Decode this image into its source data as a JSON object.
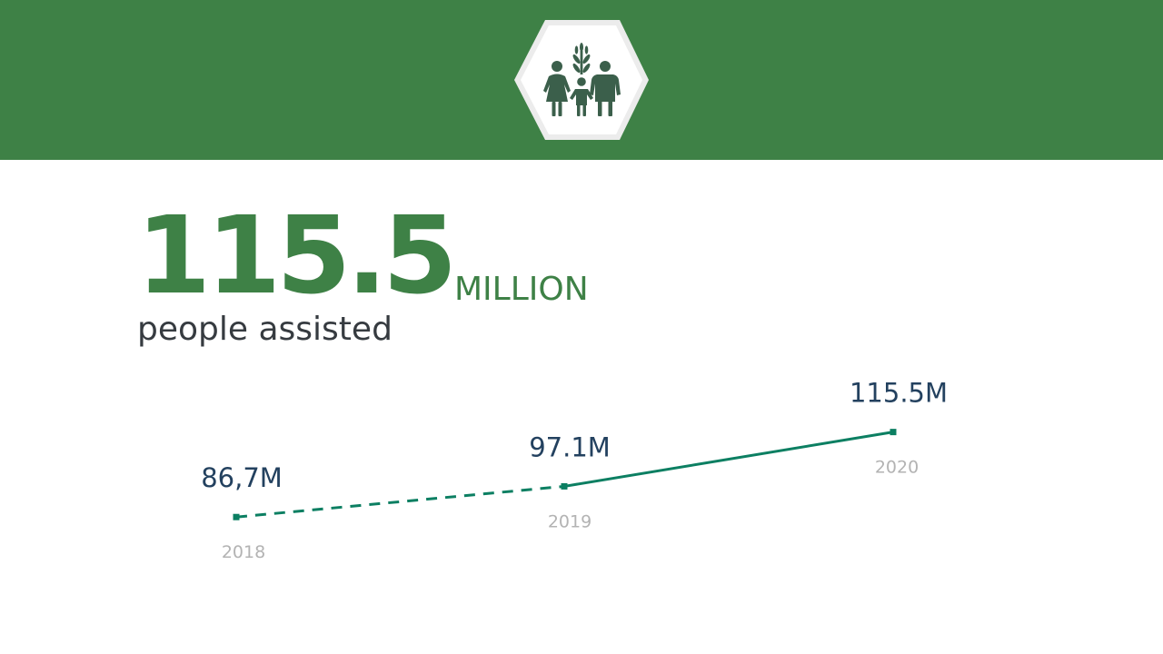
{
  "headline": {
    "number": "115.5",
    "unit": "MILLION",
    "caption": "people assisted"
  },
  "emblem": {
    "icon": "family-with-wheat-icon",
    "background_color": "#3e8146",
    "icon_color": "#3b5f4b"
  },
  "chart_data": {
    "type": "line",
    "categories": [
      "2018",
      "2019",
      "2020"
    ],
    "series": [
      {
        "values": [
          86.7,
          97.1,
          115.5
        ],
        "labels": [
          "86,7M",
          "97.1M",
          "115.5M"
        ],
        "color": "#0c7f62",
        "dashed_segments": [
          0
        ]
      }
    ],
    "ylim": [
      80,
      120
    ],
    "grid": false,
    "legend": "none"
  }
}
